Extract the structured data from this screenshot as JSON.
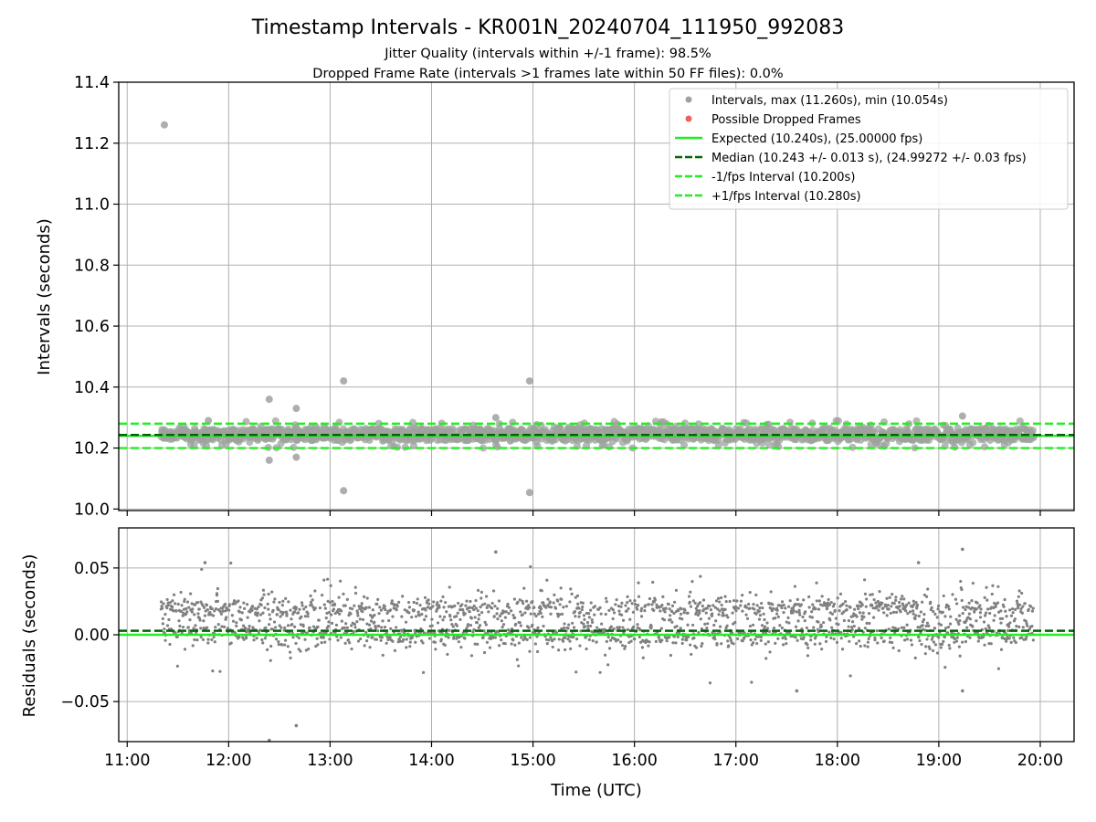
{
  "chart_data": {
    "type": "scatter",
    "title": "Timestamp Intervals - KR001N_20240704_111950_992083",
    "subtitle_lines": [
      "Jitter Quality (intervals within +/-1 frame): 98.5%",
      "Dropped Frame Rate (intervals >1 frames late within 50 FF files): 0.0%"
    ],
    "xlabel": "Time (UTC)",
    "x_ticks": [
      "11:00",
      "12:00",
      "13:00",
      "14:00",
      "15:00",
      "16:00",
      "17:00",
      "18:00",
      "19:00",
      "20:00"
    ],
    "x_range": [
      "10:55",
      "20:20"
    ],
    "data_time_range": [
      "11:20",
      "19:56"
    ],
    "grid": true,
    "panels": [
      {
        "name": "intervals",
        "ylabel": "Intervals (seconds)",
        "ylim": [
          9.995,
          11.4
        ],
        "y_ticks": [
          "10.0",
          "10.2",
          "10.4",
          "10.6",
          "10.8",
          "11.0",
          "11.2",
          "11.4"
        ],
        "y_tick_values": [
          10.0,
          10.2,
          10.4,
          10.6,
          10.8,
          11.0,
          11.2,
          11.4
        ],
        "reference_lines": [
          {
            "value": 10.24,
            "style": "solid",
            "color": "#22ee22"
          },
          {
            "value": 10.243,
            "style": "dashed",
            "color": "#006400"
          },
          {
            "value": 10.2,
            "style": "dashed",
            "color": "#22ee22"
          },
          {
            "value": 10.28,
            "style": "dashed",
            "color": "#22ee22"
          }
        ],
        "outliers": [
          {
            "t": "11:22",
            "y": 11.26
          },
          {
            "t": "12:24",
            "y": 10.36
          },
          {
            "t": "12:24",
            "y": 10.16
          },
          {
            "t": "12:40",
            "y": 10.33
          },
          {
            "t": "12:40",
            "y": 10.17
          },
          {
            "t": "13:08",
            "y": 10.42
          },
          {
            "t": "13:08",
            "y": 10.06
          },
          {
            "t": "14:58",
            "y": 10.42
          },
          {
            "t": "14:58",
            "y": 10.054
          },
          {
            "t": "19:14",
            "y": 10.305
          },
          {
            "t": "11:48",
            "y": 10.29
          },
          {
            "t": "14:38",
            "y": 10.3
          }
        ],
        "band": {
          "center": 10.245,
          "spread": 0.045
        },
        "legend": {
          "placement": "upper right",
          "entries": [
            {
              "label": "Intervals, max (11.260s), min (10.054s)",
              "marker": "dot",
              "color": "#a0a0a0"
            },
            {
              "label": "Possible Dropped Frames",
              "marker": "dot",
              "color": "#f06060"
            },
            {
              "label": "Expected (10.240s), (25.00000 fps)",
              "marker": "solid",
              "color": "#22ee22"
            },
            {
              "label": "Median (10.243 +/- 0.013 s), (24.99272 +/- 0.03 fps)",
              "marker": "dashed",
              "color": "#006400"
            },
            {
              "label": "-1/fps Interval (10.200s)",
              "marker": "dashed",
              "color": "#22ee22"
            },
            {
              "label": "+1/fps Interval (10.280s)",
              "marker": "dashed",
              "color": "#22ee22"
            }
          ]
        }
      },
      {
        "name": "residuals",
        "ylabel": "Residuals (seconds)",
        "ylim": [
          -0.08,
          0.08
        ],
        "y_ticks": [
          "−0.05",
          "0.00",
          "0.05"
        ],
        "y_tick_values": [
          -0.05,
          0.0,
          0.05
        ],
        "reference_lines": [
          {
            "value": 0.0,
            "style": "solid",
            "color": "#22ee22"
          },
          {
            "value": 0.003,
            "style": "dashed",
            "color": "#006400"
          }
        ],
        "clusters": [
          {
            "center": 0.0,
            "spread": 0.005
          },
          {
            "center": 0.02,
            "spread": 0.004
          }
        ],
        "scatter_spread": 0.025,
        "outliers": [
          {
            "t": "11:46",
            "y": 0.054
          },
          {
            "t": "12:24",
            "y": -0.079
          },
          {
            "t": "12:40",
            "y": -0.068
          },
          {
            "t": "14:38",
            "y": 0.062
          },
          {
            "t": "19:14",
            "y": 0.064
          },
          {
            "t": "19:14",
            "y": -0.042
          },
          {
            "t": "17:36",
            "y": -0.042
          },
          {
            "t": "18:48",
            "y": 0.054
          }
        ]
      }
    ],
    "colors": {
      "points": "#808080",
      "points_large": "#a0a0a0",
      "expected": "#22ee22",
      "median": "#006400",
      "grid": "#b0b0b0"
    }
  }
}
